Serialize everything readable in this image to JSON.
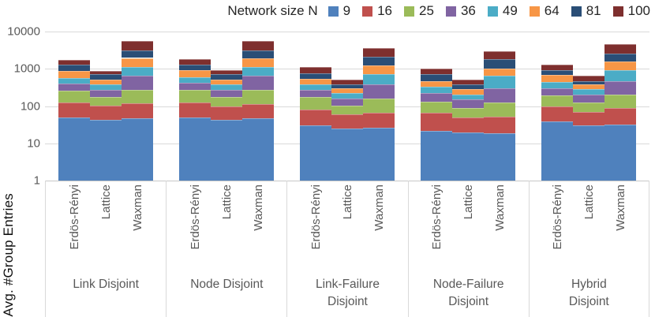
{
  "chart_data": {
    "type": "bar",
    "stacked": true,
    "yscale": "log",
    "ylim": [
      1,
      10000
    ],
    "ylabel": "Avg. #Group Entries",
    "y_ticks": [
      "10000",
      "1000",
      "100",
      "10",
      "1"
    ],
    "grid": true,
    "legend_position": "top",
    "legend_title": "Network size N",
    "series_names": [
      "9",
      "16",
      "25",
      "36",
      "49",
      "64",
      "81",
      "100"
    ],
    "series_colors": [
      "#4F81BD",
      "#C0504D",
      "#9BBB59",
      "#8064A2",
      "#4BACC6",
      "#F79646",
      "#2A4E76",
      "#7E2F2E"
    ],
    "topologies": [
      "Erdös-Rényi",
      "Lattice",
      "Waxman"
    ],
    "groups": [
      {
        "label_lines": [
          "Link Disjoint"
        ],
        "stacks": [
          [
            48,
            76,
            140,
            140,
            160,
            310,
            430,
            440
          ],
          [
            42,
            60,
            70,
            105,
            105,
            125,
            205,
            155
          ],
          [
            45,
            70,
            155,
            390,
            470,
            825,
            1130,
            2610
          ]
        ]
      },
      {
        "label_lines": [
          "Node Disjoint"
        ],
        "stacks": [
          [
            48,
            76,
            145,
            155,
            180,
            305,
            390,
            500
          ],
          [
            42,
            57,
            72,
            100,
            103,
            135,
            205,
            197
          ],
          [
            45,
            66,
            159,
            368,
            487,
            825,
            1130,
            2620
          ]
        ]
      },
      {
        "label_lines": [
          "Link-Failure",
          "Disjoint"
        ],
        "stacks": [
          [
            29,
            51,
            93,
            97,
            115,
            148,
            217,
            360
          ],
          [
            24,
            34,
            42,
            58,
            64,
            78,
            90,
            130
          ],
          [
            25,
            41,
            92,
            227,
            329,
            546,
            890,
            1450
          ]
        ]
      },
      {
        "label_lines": [
          "Node-Failure",
          "Disjoint"
        ],
        "stacks": [
          [
            21,
            43,
            66,
            88,
            113,
            143,
            240,
            321
          ],
          [
            19,
            30,
            40,
            59,
            54,
            81,
            90,
            127
          ],
          [
            18,
            32,
            74,
            176,
            338,
            397,
            765,
            1200
          ]
        ]
      },
      {
        "label_lines": [
          "Hybrid",
          "Disjoint"
        ],
        "stacks": [
          [
            37,
            62,
            96,
            105,
            150,
            231,
            230,
            389
          ],
          [
            29,
            41,
            54,
            78,
            81,
            102,
            89,
            176
          ],
          [
            31,
            55,
            116,
            272,
            437,
            689,
            1010,
            1890
          ]
        ]
      }
    ]
  }
}
